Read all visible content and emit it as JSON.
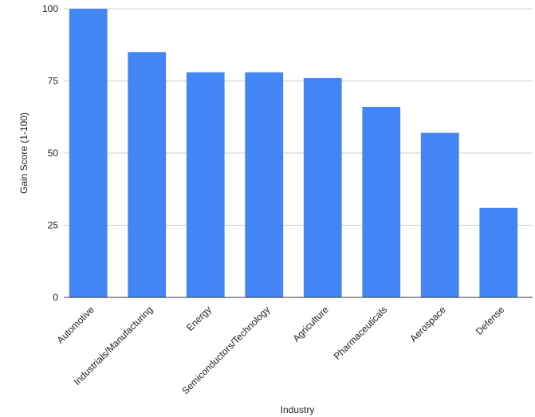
{
  "chart_data": {
    "type": "bar",
    "categories": [
      "Automotive",
      "Industrials/Manufacturing",
      "Energy",
      "Semiconductors/Technology",
      "Agriculture",
      "Pharmaceuticals",
      "Aerospace",
      "Defense"
    ],
    "series": [
      {
        "values": [
          100,
          85,
          78,
          78,
          76,
          66,
          57,
          31
        ],
        "color": "#4285f4"
      }
    ],
    "title": "",
    "xlabel": "Industry",
    "ylabel": "Gain Score (1-100)",
    "ylim": [
      0,
      100
    ],
    "yticks": [
      0,
      25,
      50,
      75,
      100
    ],
    "grid": true,
    "legend": "none"
  }
}
